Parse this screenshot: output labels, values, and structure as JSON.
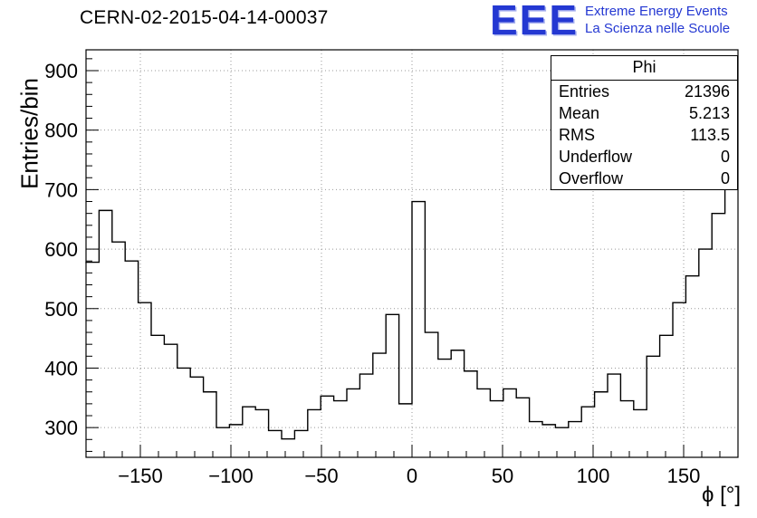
{
  "header": {
    "title": "CERN-02-2015-04-14-00037",
    "logo": {
      "text": "EEE",
      "line1": "Extreme Energy Events",
      "line2": "La Scienza nelle Scuole",
      "color": "#2438d2"
    }
  },
  "stats": {
    "title": "Phi",
    "rows": [
      {
        "label": "Entries",
        "value": "21396"
      },
      {
        "label": "Mean",
        "value": "5.213"
      },
      {
        "label": "RMS",
        "value": "113.5"
      },
      {
        "label": "Underflow",
        "value": "0"
      },
      {
        "label": "Overflow",
        "value": "0"
      }
    ]
  },
  "axes": {
    "ylabel": "Entries/bin",
    "xlabel": "ϕ [°]"
  },
  "chart_data": {
    "type": "bar",
    "subtype": "step-histogram",
    "title": "CERN-02-2015-04-14-00037",
    "xlabel": "ϕ [°]",
    "ylabel": "Entries/bin",
    "xlim": [
      -180,
      180
    ],
    "ylim": [
      250,
      935
    ],
    "grid": true,
    "legend": "stats-box top-right",
    "x_major_ticks": [
      -150,
      -100,
      -50,
      0,
      50,
      100,
      150
    ],
    "y_major_ticks": [
      300,
      400,
      500,
      600,
      700,
      800,
      900
    ],
    "x_minor_step": 10,
    "y_minor_step": 20,
    "bin_start": -180,
    "bin_width": 7.2,
    "line_color": "#000000",
    "values": [
      578,
      665,
      612,
      580,
      510,
      455,
      440,
      400,
      385,
      360,
      300,
      305,
      335,
      330,
      295,
      281,
      295,
      330,
      353,
      345,
      365,
      390,
      425,
      490,
      340,
      680,
      460,
      415,
      430,
      395,
      365,
      345,
      365,
      350,
      310,
      305,
      300,
      310,
      335,
      360,
      390,
      345,
      330,
      420,
      455,
      510,
      555,
      600,
      660,
      920
    ]
  }
}
